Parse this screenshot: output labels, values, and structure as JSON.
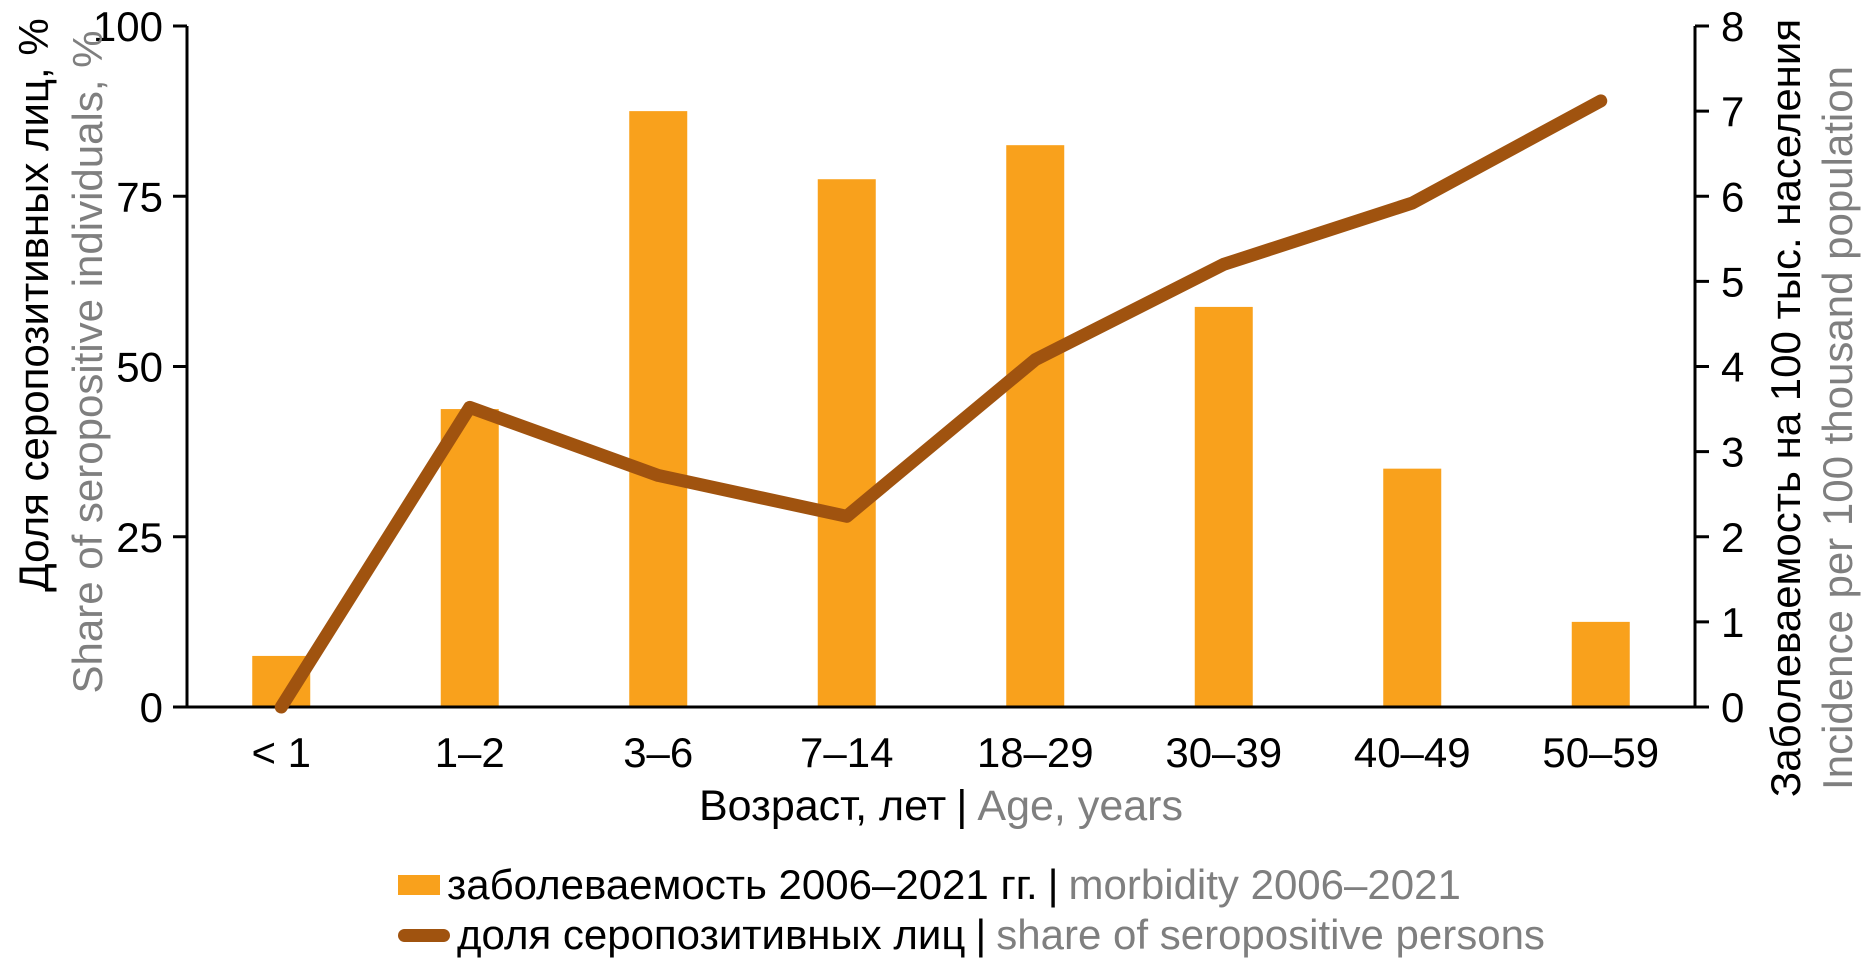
{
  "colors": {
    "bar": "#F9A11C",
    "line": "#A0530F",
    "secondary_text": "#7f7f7f",
    "primary_text": "#000000",
    "axis": "#000000"
  },
  "chart_data": {
    "type": "combo",
    "categories": [
      "< 1",
      "1–2",
      "3–6",
      "7–14",
      "18–29",
      "30–39",
      "40–49",
      "50–59"
    ],
    "series": [
      {
        "name": "заболеваемость 2006–2021 гг. | morbidity 2006–2021",
        "type": "bar",
        "axis": "right",
        "values": [
          0.6,
          3.5,
          7.0,
          6.2,
          6.6,
          4.7,
          2.8,
          1.0
        ]
      },
      {
        "name": "доля серопозитивных лиц | share of seropositive persons",
        "type": "line",
        "axis": "left",
        "values": [
          0,
          44,
          34,
          28,
          51,
          65,
          74,
          89
        ]
      }
    ],
    "left_axis": {
      "title_ru": "Доля серопозитивных лиц, %",
      "title_en": "Share of seropositive individuals, %",
      "ticks": [
        0,
        25,
        50,
        75,
        100
      ],
      "range": [
        0,
        100
      ]
    },
    "right_axis": {
      "title_ru": "Заболеваемость на 100 тыс. населения",
      "title_en": "Incidence per 100 thousand population",
      "ticks": [
        0,
        1,
        2,
        3,
        4,
        5,
        6,
        7,
        8
      ],
      "range": [
        0,
        8
      ]
    },
    "x_axis": {
      "title_ru": "Возраст, лет",
      "separator": "|",
      "title_en": "Age, years"
    },
    "grid": false,
    "legend_position": "bottom"
  },
  "legend": [
    {
      "swatch": "bar",
      "label_ru": "заболеваемость 2006–2021 гг.",
      "separator": "|",
      "label_en": "morbidity 2006–2021"
    },
    {
      "swatch": "line",
      "label_ru": "доля серопозитивных лиц",
      "separator": "|",
      "label_en": "share of seropositive persons"
    }
  ]
}
